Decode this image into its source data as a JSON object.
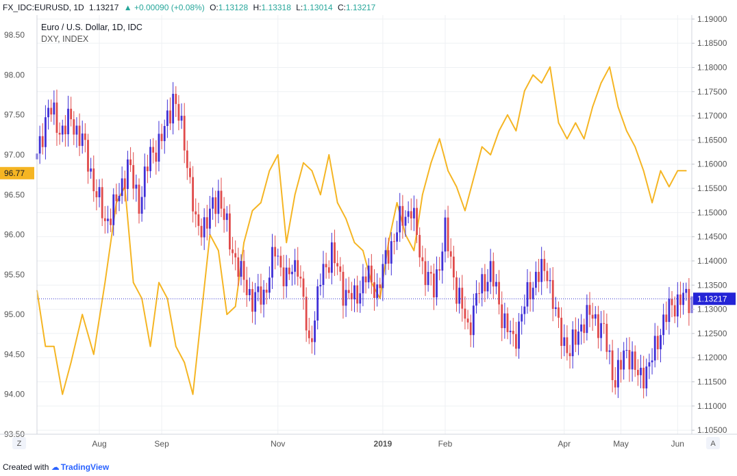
{
  "header": {
    "symbol": "FX_IDC:EURUSD, 1D",
    "last": "1.13217",
    "change": "▲ +0.00090 (+0.08%)",
    "o_label": "O:",
    "o": "1.13128",
    "h_label": "H:",
    "h": "1.13318",
    "l_label": "L:",
    "l": "1.13014",
    "c_label": "C:",
    "c": "1.13217"
  },
  "legend": {
    "main": "Euro / U.S. Dollar, 1D, IDC",
    "overlay": "DXY, INDEX"
  },
  "footer": {
    "created_with": "Created with",
    "brand": "TradingView"
  },
  "buttons": {
    "left": "Z",
    "right": "A"
  },
  "colors": {
    "up": "#3f2fd6",
    "down": "#e04a4a",
    "dxy": "#f5b523",
    "price_line": "#2e2ecf",
    "dxy_badge": "#f5b523",
    "eur_badge": "#2424d6",
    "grid": "#eef0f3"
  },
  "chart_data": {
    "type": "line",
    "title": "Euro / U.S. Dollar, 1D, IDC",
    "left_axis": {
      "label": "DXY, INDEX",
      "ylim": [
        93.5,
        98.75
      ],
      "ticks": [
        "93.50",
        "94.00",
        "94.50",
        "95.00",
        "95.50",
        "96.00",
        "96.50",
        "97.00",
        "97.50",
        "98.00",
        "98.50"
      ]
    },
    "right_axis": {
      "label": "EURUSD",
      "ylim": [
        1.10417,
        1.19083
      ],
      "ticks": [
        "1.10500",
        "1.11000",
        "1.11500",
        "1.12000",
        "1.12500",
        "1.13000",
        "1.13500",
        "1.14000",
        "1.14500",
        "1.15000",
        "1.15500",
        "1.16000",
        "1.16500",
        "1.17000",
        "1.17500",
        "1.18000",
        "1.18500",
        "1.19000"
      ]
    },
    "x_labels": [
      "Aug",
      "Sep",
      "Nov",
      "2019",
      "Feb",
      "Apr",
      "May",
      "Jun"
    ],
    "x_index_range": [
      0,
      231
    ],
    "x_label_index": [
      22,
      44,
      85,
      122,
      144,
      186,
      206,
      226
    ],
    "dxy_current": "96.77",
    "eurusd_current": "1.13217",
    "series": [
      {
        "name": "DXY, INDEX",
        "axis": "left",
        "x": [
          0,
          3,
          6,
          9,
          12,
          16,
          20,
          24,
          28,
          31,
          34,
          37,
          40,
          43,
          46,
          49,
          52,
          55,
          58,
          61,
          64,
          67,
          70,
          73,
          76,
          79,
          82,
          85,
          88,
          91,
          94,
          97,
          100,
          103,
          106,
          109,
          112,
          115,
          118,
          121,
          124,
          127,
          130,
          133,
          136,
          139,
          142,
          145,
          148,
          151,
          154,
          157,
          160,
          163,
          166,
          169,
          172,
          175,
          178,
          181,
          184,
          187,
          190,
          193,
          196,
          199,
          202,
          205,
          208,
          211,
          214,
          217,
          220,
          223,
          226,
          229
        ],
        "values": [
          95.3,
          94.6,
          94.6,
          94.0,
          94.4,
          95.0,
          94.5,
          95.4,
          96.4,
          96.6,
          95.4,
          95.2,
          94.6,
          95.4,
          95.2,
          94.6,
          94.4,
          94.0,
          95.0,
          96.0,
          95.8,
          95.0,
          95.1,
          95.9,
          96.3,
          96.4,
          96.8,
          97.0,
          95.9,
          96.5,
          96.9,
          96.8,
          96.5,
          97.0,
          96.4,
          96.2,
          95.9,
          95.8,
          95.4,
          95.2,
          95.9,
          96.4,
          96.0,
          95.8,
          96.5,
          96.9,
          97.2,
          96.8,
          96.6,
          96.3,
          96.7,
          97.1,
          97.0,
          97.3,
          97.5,
          97.3,
          97.8,
          98.0,
          97.9,
          98.1,
          97.4,
          97.2,
          97.4,
          97.2,
          97.6,
          97.9,
          98.1,
          97.6,
          97.3,
          97.1,
          96.8,
          96.4,
          96.8,
          96.6,
          96.8,
          96.8
        ]
      },
      {
        "name": "EUR/USD",
        "axis": "right",
        "kind": "candlestick",
        "x": [
          0,
          4,
          8,
          12,
          16,
          20,
          24,
          28,
          32,
          36,
          40,
          44,
          48,
          52,
          56,
          60,
          64,
          68,
          72,
          76,
          80,
          84,
          88,
          92,
          96,
          100,
          104,
          108,
          112,
          116,
          120,
          124,
          128,
          132,
          136,
          140,
          144,
          148,
          152,
          156,
          160,
          164,
          168,
          172,
          176,
          180,
          184,
          188,
          192,
          196,
          200,
          204,
          208,
          212,
          216,
          220,
          224,
          228
        ],
        "close": [
          1.161,
          1.172,
          1.167,
          1.169,
          1.165,
          1.156,
          1.148,
          1.152,
          1.16,
          1.152,
          1.162,
          1.165,
          1.174,
          1.165,
          1.147,
          1.148,
          1.154,
          1.144,
          1.137,
          1.132,
          1.133,
          1.142,
          1.136,
          1.14,
          1.122,
          1.136,
          1.142,
          1.134,
          1.132,
          1.137,
          1.134,
          1.142,
          1.148,
          1.151,
          1.139,
          1.134,
          1.146,
          1.134,
          1.126,
          1.134,
          1.138,
          1.129,
          1.123,
          1.131,
          1.137,
          1.138,
          1.126,
          1.121,
          1.127,
          1.129,
          1.125,
          1.115,
          1.122,
          1.116,
          1.118,
          1.126,
          1.131,
          1.1322
        ]
      }
    ]
  }
}
